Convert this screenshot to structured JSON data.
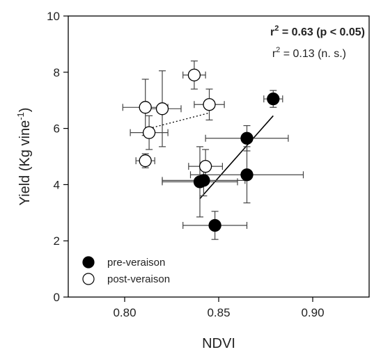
{
  "chart_data": {
    "type": "scatter",
    "xlabel": "NDVI",
    "ylabel": "Yield (Kg vine",
    "ylabel_sup": "-1",
    "ylabel_close": ")",
    "xlim": [
      0.77,
      0.93
    ],
    "ylim": [
      0,
      10
    ],
    "xticks": [
      0.8,
      0.85,
      0.9
    ],
    "xtick_labels": [
      "0.80",
      "0.85",
      "0.90"
    ],
    "yticks": [
      0,
      2,
      4,
      6,
      8,
      10
    ],
    "ytick_labels": [
      "0",
      "2",
      "4",
      "6",
      "8",
      "10"
    ],
    "grid": false,
    "legend_position": "bottom-left",
    "annotations": {
      "r2_pre": {
        "prefix": "r",
        "sup": "2",
        "text": " = 0.63 (p < 0.05)",
        "bold": true
      },
      "r2_post": {
        "prefix": "r",
        "sup": "2",
        "text": " = 0.13 (n. s.)",
        "bold": false
      }
    },
    "series": [
      {
        "name": "pre-veraison",
        "marker_fill": "#000000",
        "marker_stroke": "#000000",
        "points": [
          {
            "x": 0.879,
            "y": 7.05,
            "xerr": 0.005,
            "yerr": 0.3
          },
          {
            "x": 0.865,
            "y": 5.65,
            "xerr": 0.022,
            "yerr": 0.45
          },
          {
            "x": 0.865,
            "y": 4.35,
            "xerr": 0.03,
            "yerr": 1.0
          },
          {
            "x": 0.842,
            "y": 4.15,
            "xerr": 0.022,
            "yerr": 0.55
          },
          {
            "x": 0.84,
            "y": 4.1,
            "xerr": 0.02,
            "yerr": 1.25
          },
          {
            "x": 0.848,
            "y": 2.55,
            "xerr": 0.017,
            "yerr": 0.5
          }
        ],
        "fit": {
          "x": [
            0.84,
            0.879
          ],
          "y": [
            3.5,
            6.45
          ],
          "style": "solid"
        }
      },
      {
        "name": "post-veraison",
        "marker_fill": "#ffffff",
        "marker_stroke": "#000000",
        "points": [
          {
            "x": 0.837,
            "y": 7.9,
            "xerr": 0.006,
            "yerr": 0.5
          },
          {
            "x": 0.811,
            "y": 6.75,
            "xerr": 0.012,
            "yerr": 1.0
          },
          {
            "x": 0.82,
            "y": 6.7,
            "xerr": 0.01,
            "yerr": 1.35
          },
          {
            "x": 0.845,
            "y": 6.85,
            "xerr": 0.008,
            "yerr": 0.55
          },
          {
            "x": 0.813,
            "y": 5.85,
            "xerr": 0.01,
            "yerr": 0.6
          },
          {
            "x": 0.811,
            "y": 4.85,
            "xerr": 0.005,
            "yerr": 0.25
          },
          {
            "x": 0.843,
            "y": 4.65,
            "xerr": 0.009,
            "yerr": 0.6
          }
        ],
        "fit": {
          "x": [
            0.813,
            0.845
          ],
          "y": [
            6.0,
            6.55
          ],
          "style": "dotted"
        }
      }
    ]
  }
}
